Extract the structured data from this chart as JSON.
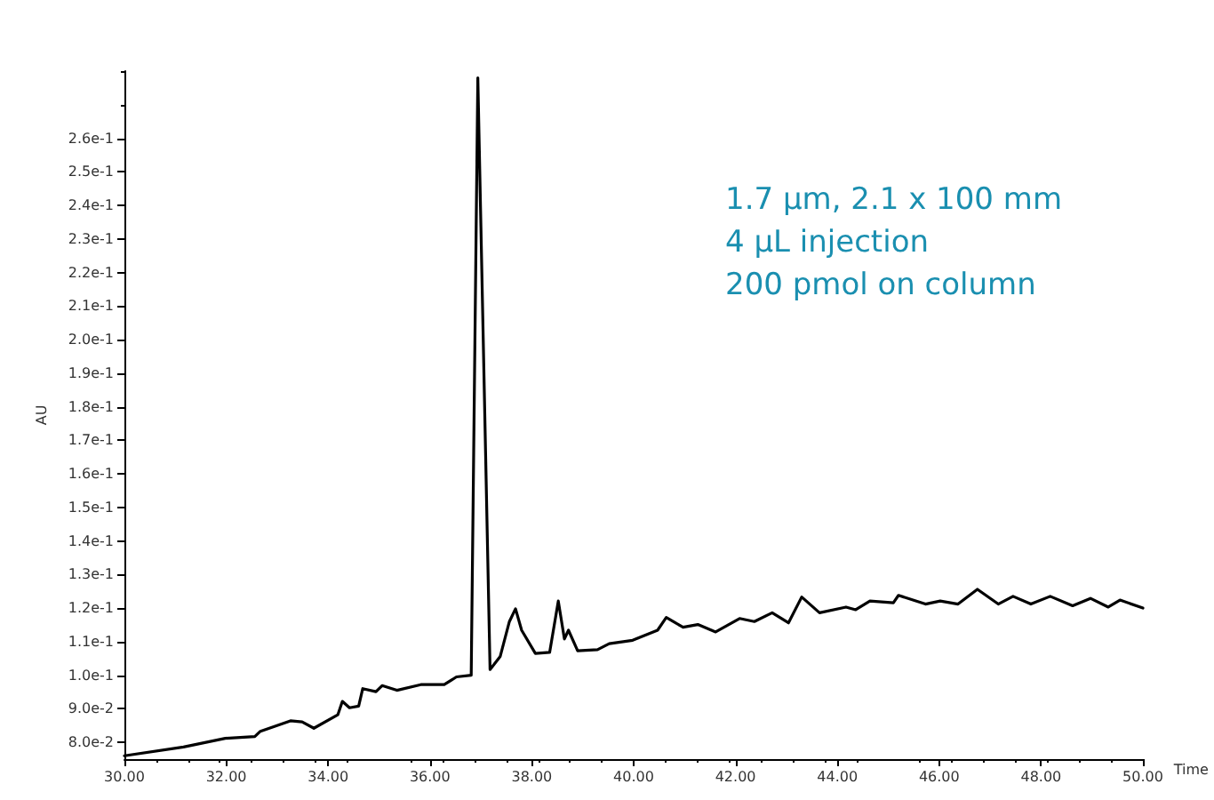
{
  "chart_data": {
    "type": "line",
    "xlabel": "Time",
    "ylabel": "AU",
    "annotations": [
      "1.7 µm, 2.1 x 100 mm",
      "4 µL injection",
      "200 pmol on column"
    ],
    "xlim": [
      30,
      50
    ],
    "ylim": [
      0.075,
      0.28
    ],
    "xticks": [
      {
        "value": 30,
        "label": "30.00"
      },
      {
        "value": 32,
        "label": "32.00"
      },
      {
        "value": 34,
        "label": "34.00"
      },
      {
        "value": 36,
        "label": "36.00"
      },
      {
        "value": 38,
        "label": "38.00"
      },
      {
        "value": 40,
        "label": "40.00"
      },
      {
        "value": 42,
        "label": "42.00"
      },
      {
        "value": 44,
        "label": "44.00"
      },
      {
        "value": 46,
        "label": "46.00"
      },
      {
        "value": 48,
        "label": "48.00"
      },
      {
        "value": 50,
        "label": "50.00"
      }
    ],
    "yticks": [
      {
        "value": 0.08,
        "label": "8.0e-2"
      },
      {
        "value": 0.09,
        "label": "9.0e-2"
      },
      {
        "value": 0.1,
        "label": "1.0e-1"
      },
      {
        "value": 0.11,
        "label": "1.1e-1"
      },
      {
        "value": 0.12,
        "label": "1.2e-1"
      },
      {
        "value": 0.13,
        "label": "1.3e-1"
      },
      {
        "value": 0.14,
        "label": "1.4e-1"
      },
      {
        "value": 0.15,
        "label": "1.5e-1"
      },
      {
        "value": 0.16,
        "label": "1.6e-1"
      },
      {
        "value": 0.17,
        "label": "1.7e-1"
      },
      {
        "value": 0.18,
        "label": "1.8e-1"
      },
      {
        "value": 0.19,
        "label": "1.9e-1"
      },
      {
        "value": 0.2,
        "label": "2.0e-1"
      },
      {
        "value": 0.21,
        "label": "2.1e-1"
      },
      {
        "value": 0.22,
        "label": "2.2e-1"
      },
      {
        "value": 0.23,
        "label": "2.3e-1"
      },
      {
        "value": 0.24,
        "label": "2.4e-1"
      },
      {
        "value": 0.25,
        "label": "2.5e-1"
      },
      {
        "value": 0.26,
        "label": "2.6e-1"
      }
    ],
    "grid": false,
    "marker": "none",
    "line_style": "solid",
    "series": [
      {
        "color": "#000000",
        "x": [
          30.0,
          31.16,
          31.98,
          32.56,
          32.67,
          33.26,
          33.49,
          33.72,
          34.19,
          34.28,
          34.42,
          34.6,
          34.68,
          34.94,
          35.06,
          35.35,
          35.82,
          36.28,
          36.52,
          36.81,
          36.94,
          37.18,
          37.38,
          37.56,
          37.68,
          37.8,
          38.07,
          38.35,
          38.52,
          38.64,
          38.72,
          38.9,
          39.29,
          39.52,
          39.98,
          40.47,
          40.64,
          40.82,
          40.97,
          41.26,
          41.61,
          42.08,
          42.37,
          42.72,
          43.04,
          43.3,
          43.65,
          44.17,
          44.36,
          44.64,
          45.1,
          45.2,
          45.73,
          46.02,
          46.37,
          46.75,
          47.16,
          47.45,
          47.8,
          48.18,
          48.62,
          48.97,
          49.32,
          49.55,
          50.0
        ],
        "values": [
          0.076,
          0.0786,
          0.0812,
          0.0817,
          0.0833,
          0.0864,
          0.0861,
          0.0842,
          0.0882,
          0.0922,
          0.0903,
          0.0908,
          0.096,
          0.0951,
          0.0969,
          0.0955,
          0.0972,
          0.0972,
          0.0995,
          0.1,
          0.278,
          0.1017,
          0.1056,
          0.116,
          0.1198,
          0.1134,
          0.1065,
          0.1068,
          0.1221,
          0.1108,
          0.1134,
          0.1073,
          0.1076,
          0.1094,
          0.1104,
          0.1134,
          0.1172,
          0.1156,
          0.1143,
          0.1151,
          0.1129,
          0.1169,
          0.116,
          0.1186,
          0.1156,
          0.1233,
          0.1186,
          0.1203,
          0.1195,
          0.1221,
          0.1216,
          0.1238,
          0.1212,
          0.1221,
          0.1212,
          0.1256,
          0.1212,
          0.1235,
          0.1212,
          0.1235,
          0.1207,
          0.1229,
          0.1203,
          0.1224,
          0.12
        ]
      }
    ]
  }
}
